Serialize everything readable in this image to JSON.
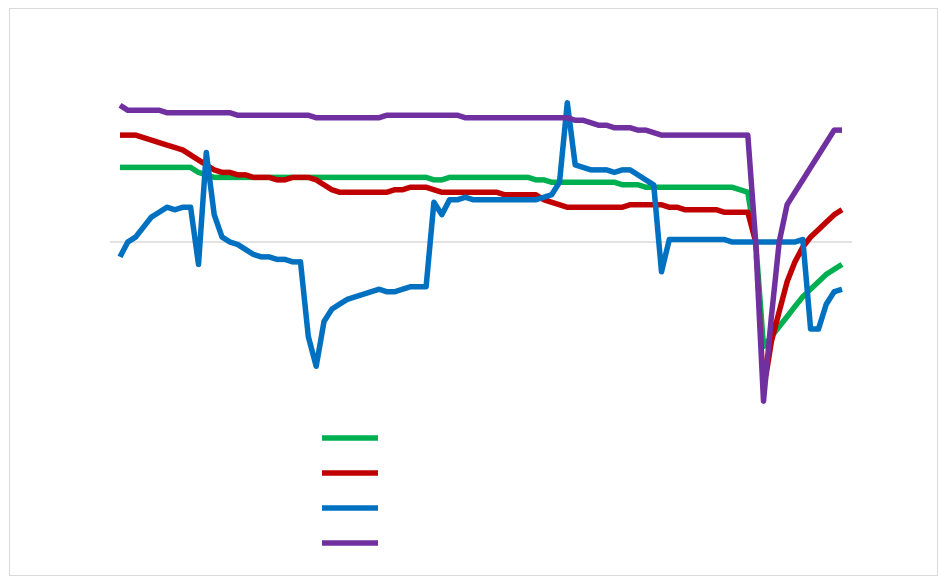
{
  "chart_data": {
    "type": "line",
    "title": "",
    "xlabel": "",
    "ylabel": "",
    "grid": false,
    "legend_placement": "bottom-center",
    "x": [
      0,
      1,
      2,
      3,
      4,
      5,
      6,
      7,
      8,
      9,
      10,
      11,
      12,
      13,
      14,
      15,
      16,
      17,
      18,
      19,
      20,
      21,
      22,
      23,
      24,
      25,
      26,
      27,
      28,
      29,
      30,
      31,
      32,
      33,
      34,
      35,
      36,
      37,
      38,
      39,
      40,
      41,
      42,
      43,
      44,
      45,
      46,
      47,
      48,
      49,
      50,
      51,
      52,
      53,
      54,
      55,
      56,
      57,
      58,
      59,
      60,
      61,
      62,
      63,
      64,
      65,
      66,
      67,
      68,
      69,
      70,
      71,
      72,
      73,
      74,
      75,
      76,
      77,
      78,
      79,
      80,
      81,
      82,
      83,
      84,
      85,
      86,
      87,
      88,
      89,
      90,
      91,
      92
    ],
    "ylim": [
      -7,
      7
    ],
    "zero_line": 0,
    "series": [
      {
        "color": "#00b050",
        "values": [
          3.0,
          3.0,
          3.0,
          3.0,
          3.0,
          3.0,
          3.0,
          3.0,
          3.0,
          3.0,
          2.8,
          2.7,
          2.6,
          2.6,
          2.6,
          2.6,
          2.6,
          2.6,
          2.6,
          2.6,
          2.6,
          2.6,
          2.6,
          2.6,
          2.6,
          2.6,
          2.6,
          2.6,
          2.6,
          2.6,
          2.6,
          2.6,
          2.6,
          2.6,
          2.6,
          2.6,
          2.6,
          2.6,
          2.6,
          2.6,
          2.5,
          2.5,
          2.6,
          2.6,
          2.6,
          2.6,
          2.6,
          2.6,
          2.6,
          2.6,
          2.6,
          2.6,
          2.6,
          2.5,
          2.5,
          2.4,
          2.4,
          2.4,
          2.4,
          2.4,
          2.4,
          2.4,
          2.4,
          2.4,
          2.3,
          2.3,
          2.3,
          2.2,
          2.2,
          2.2,
          2.2,
          2.2,
          2.2,
          2.2,
          2.2,
          2.2,
          2.2,
          2.2,
          2.2,
          2.1,
          2.0,
          0.0,
          -4.2,
          -3.8,
          -3.4,
          -3.0,
          -2.6,
          -2.2,
          -1.9,
          -1.6,
          -1.3,
          -1.1,
          -0.9
        ]
      },
      {
        "color": "#c00000",
        "values": [
          4.3,
          4.3,
          4.3,
          4.2,
          4.1,
          4.0,
          3.9,
          3.8,
          3.7,
          3.5,
          3.3,
          3.1,
          2.9,
          2.8,
          2.8,
          2.7,
          2.7,
          2.6,
          2.6,
          2.6,
          2.5,
          2.5,
          2.6,
          2.6,
          2.6,
          2.5,
          2.3,
          2.1,
          2.0,
          2.0,
          2.0,
          2.0,
          2.0,
          2.0,
          2.0,
          2.1,
          2.1,
          2.2,
          2.2,
          2.2,
          2.1,
          2.0,
          2.0,
          2.0,
          2.0,
          2.0,
          2.0,
          2.0,
          2.0,
          1.9,
          1.9,
          1.9,
          1.9,
          1.9,
          1.7,
          1.6,
          1.5,
          1.4,
          1.4,
          1.4,
          1.4,
          1.4,
          1.4,
          1.4,
          1.4,
          1.5,
          1.5,
          1.5,
          1.5,
          1.5,
          1.4,
          1.4,
          1.3,
          1.3,
          1.3,
          1.3,
          1.3,
          1.2,
          1.2,
          1.2,
          1.2,
          0.0,
          -6.0,
          -4.0,
          -2.8,
          -1.6,
          -0.8,
          -0.2,
          0.2,
          0.5,
          0.8,
          1.1,
          1.3
        ]
      },
      {
        "color": "#0070c0",
        "values": [
          -0.6,
          0.0,
          0.2,
          0.6,
          1.0,
          1.2,
          1.4,
          1.3,
          1.4,
          1.4,
          -0.9,
          3.6,
          1.1,
          0.2,
          0.0,
          -0.1,
          -0.3,
          -0.5,
          -0.6,
          -0.6,
          -0.7,
          -0.7,
          -0.8,
          -0.8,
          -3.8,
          -5.0,
          -3.2,
          -2.7,
          -2.5,
          -2.3,
          -2.2,
          -2.1,
          -2.0,
          -1.9,
          -2.0,
          -2.0,
          -1.9,
          -1.8,
          -1.8,
          -1.8,
          1.6,
          1.1,
          1.7,
          1.7,
          1.8,
          1.7,
          1.7,
          1.7,
          1.7,
          1.7,
          1.7,
          1.7,
          1.7,
          1.7,
          1.8,
          1.9,
          2.4,
          5.6,
          3.1,
          3.0,
          2.9,
          2.9,
          2.9,
          2.8,
          2.9,
          2.9,
          2.7,
          2.5,
          2.3,
          -1.2,
          0.1,
          0.1,
          0.1,
          0.1,
          0.1,
          0.1,
          0.1,
          0.1,
          0.0,
          0.0,
          0.0,
          0.0,
          0.0,
          0.0,
          0.0,
          0.0,
          0.0,
          0.1,
          -3.5,
          -3.5,
          -2.5,
          -2.0,
          -1.9
        ]
      },
      {
        "color": "#7030a0",
        "values": [
          5.5,
          5.3,
          5.3,
          5.3,
          5.3,
          5.3,
          5.2,
          5.2,
          5.2,
          5.2,
          5.2,
          5.2,
          5.2,
          5.2,
          5.2,
          5.1,
          5.1,
          5.1,
          5.1,
          5.1,
          5.1,
          5.1,
          5.1,
          5.1,
          5.1,
          5.0,
          5.0,
          5.0,
          5.0,
          5.0,
          5.0,
          5.0,
          5.0,
          5.0,
          5.1,
          5.1,
          5.1,
          5.1,
          5.1,
          5.1,
          5.1,
          5.1,
          5.1,
          5.1,
          5.0,
          5.0,
          5.0,
          5.0,
          5.0,
          5.0,
          5.0,
          5.0,
          5.0,
          5.0,
          5.0,
          5.0,
          5.0,
          5.0,
          4.9,
          4.9,
          4.8,
          4.7,
          4.7,
          4.6,
          4.6,
          4.6,
          4.5,
          4.5,
          4.4,
          4.3,
          4.3,
          4.3,
          4.3,
          4.3,
          4.3,
          4.3,
          4.3,
          4.3,
          4.3,
          4.3,
          4.3,
          0.0,
          -6.4,
          -3.0,
          0.0,
          1.5,
          2.0,
          2.5,
          3.0,
          3.5,
          4.0,
          4.5,
          4.5
        ]
      }
    ]
  }
}
